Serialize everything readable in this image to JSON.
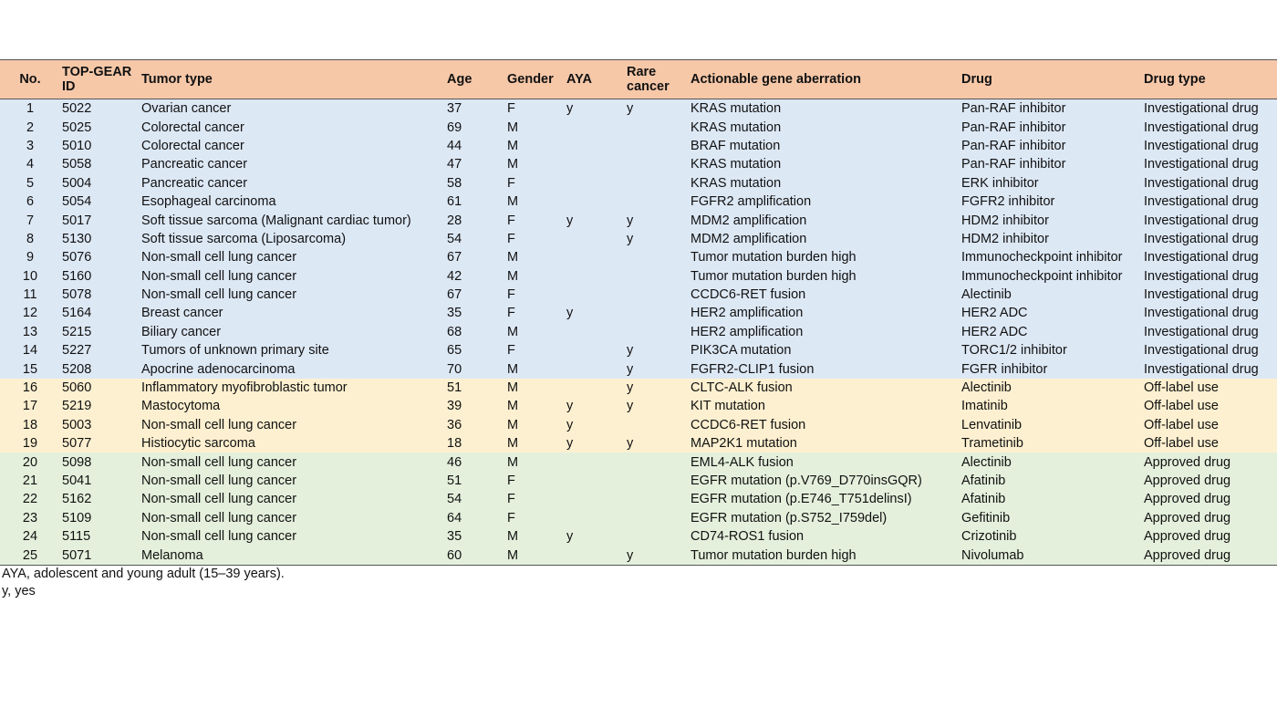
{
  "table": {
    "group_colors": {
      "Investigational drug": "#dde8f5",
      "Off-label use": "#fdf0d0",
      "Approved drug": "#e4f0dc"
    },
    "header_color": "#f6c8a8",
    "headers": [
      "No.",
      "TOP-GEAR ID",
      "Tumor type",
      "Age",
      "Gender",
      "AYA",
      "Rare cancer",
      "Actionable gene aberration",
      "Drug",
      "Drug type"
    ],
    "rows": [
      [
        "1",
        "5022",
        "Ovarian cancer",
        "37",
        "F",
        "y",
        "y",
        "KRAS mutation",
        "Pan-RAF inhibitor",
        "Investigational drug"
      ],
      [
        "2",
        "5025",
        "Colorectal cancer",
        "69",
        "M",
        "",
        "",
        "KRAS mutation",
        "Pan-RAF inhibitor",
        "Investigational drug"
      ],
      [
        "3",
        "5010",
        "Colorectal cancer",
        "44",
        "M",
        "",
        "",
        "BRAF mutation",
        "Pan-RAF inhibitor",
        "Investigational drug"
      ],
      [
        "4",
        "5058",
        "Pancreatic cancer",
        "47",
        "M",
        "",
        "",
        "KRAS mutation",
        "Pan-RAF inhibitor",
        "Investigational drug"
      ],
      [
        "5",
        "5004",
        "Pancreatic cancer",
        "58",
        "F",
        "",
        "",
        "KRAS mutation",
        "ERK inhibitor",
        "Investigational drug"
      ],
      [
        "6",
        "5054",
        "Esophageal carcinoma",
        "61",
        "M",
        "",
        "",
        "FGFR2 amplification",
        "FGFR2 inhibitor",
        "Investigational drug"
      ],
      [
        "7",
        "5017",
        "Soft tissue sarcoma (Malignant cardiac tumor)",
        "28",
        "F",
        "y",
        "y",
        "MDM2 amplification",
        "HDM2 inhibitor",
        "Investigational drug"
      ],
      [
        "8",
        "5130",
        "Soft tissue sarcoma (Liposarcoma)",
        "54",
        "F",
        "",
        "y",
        "MDM2 amplification",
        "HDM2 inhibitor",
        "Investigational drug"
      ],
      [
        "9",
        "5076",
        "Non-small cell lung cancer",
        "67",
        "M",
        "",
        "",
        "Tumor mutation burden high",
        "Immunocheckpoint inhibitor",
        "Investigational drug"
      ],
      [
        "10",
        "5160",
        "Non-small cell lung cancer",
        "42",
        "M",
        "",
        "",
        "Tumor mutation burden high",
        "Immunocheckpoint inhibitor",
        "Investigational drug"
      ],
      [
        "11",
        "5078",
        "Non-small cell lung cancer",
        "67",
        "F",
        "",
        "",
        "CCDC6-RET fusion",
        "Alectinib",
        "Investigational drug"
      ],
      [
        "12",
        "5164",
        "Breast cancer",
        "35",
        "F",
        "y",
        "",
        "HER2 amplification",
        "HER2 ADC",
        "Investigational drug"
      ],
      [
        "13",
        "5215",
        "Biliary cancer",
        "68",
        "M",
        "",
        "",
        "HER2 amplification",
        "HER2 ADC",
        "Investigational drug"
      ],
      [
        "14",
        "5227",
        "Tumors of unknown primary site",
        "65",
        "F",
        "",
        "y",
        "PIK3CA mutation",
        "TORC1/2 inhibitor",
        "Investigational drug"
      ],
      [
        "15",
        "5208",
        "Apocrine adenocarcinoma",
        "70",
        "M",
        "",
        "y",
        "FGFR2-CLIP1 fusion",
        "FGFR inhibitor",
        "Investigational drug"
      ],
      [
        "16",
        "5060",
        "Inflammatory myofibroblastic tumor",
        "51",
        "M",
        "",
        "y",
        "CLTC-ALK fusion",
        "Alectinib",
        "Off-label use"
      ],
      [
        "17",
        "5219",
        "Mastocytoma",
        "39",
        "M",
        "y",
        "y",
        "KIT mutation",
        "Imatinib",
        "Off-label use"
      ],
      [
        "18",
        "5003",
        "Non-small cell lung cancer",
        "36",
        "M",
        "y",
        "",
        "CCDC6-RET fusion",
        "Lenvatinib",
        "Off-label use"
      ],
      [
        "19",
        "5077",
        "Histiocytic sarcoma",
        "18",
        "M",
        "y",
        "y",
        "MAP2K1 mutation",
        "Trametinib",
        "Off-label use"
      ],
      [
        "20",
        "5098",
        "Non-small cell lung cancer",
        "46",
        "M",
        "",
        "",
        "EML4-ALK fusion",
        "Alectinib",
        "Approved drug"
      ],
      [
        "21",
        "5041",
        "Non-small cell lung cancer",
        "51",
        "F",
        "",
        "",
        "EGFR mutation (p.V769_D770insGQR)",
        "Afatinib",
        "Approved drug"
      ],
      [
        "22",
        "5162",
        "Non-small cell lung cancer",
        "54",
        "F",
        "",
        "",
        "EGFR mutation (p.E746_T751delinsI)",
        "Afatinib",
        "Approved drug"
      ],
      [
        "23",
        "5109",
        "Non-small cell lung cancer",
        "64",
        "F",
        "",
        "",
        "EGFR mutation (p.S752_I759del)",
        "Gefitinib",
        "Approved drug"
      ],
      [
        "24",
        "5115",
        "Non-small cell lung cancer",
        "35",
        "M",
        "y",
        "",
        "CD74-ROS1 fusion",
        "Crizotinib",
        "Approved drug"
      ],
      [
        "25",
        "5071",
        "Melanoma",
        "60",
        "M",
        "",
        "y",
        "Tumor mutation burden high",
        "Nivolumab",
        "Approved drug"
      ]
    ]
  },
  "footnotes": [
    "AYA, adolescent and young adult (15–39 years).",
    "y, yes"
  ]
}
